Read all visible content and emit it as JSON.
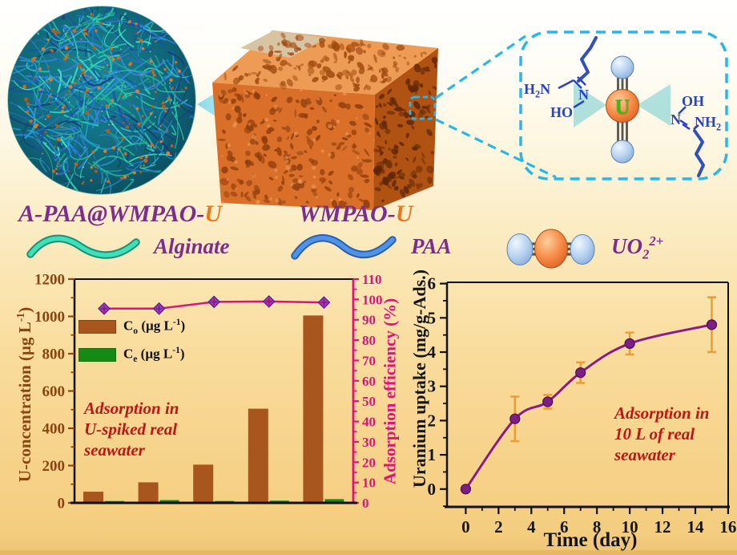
{
  "header": {
    "sphere_title": {
      "main": "A-PAA@WMPAO-",
      "suffix": "U"
    },
    "cube_title": {
      "main": "WMPAO-",
      "suffix": "U"
    }
  },
  "legend_row": {
    "alginate": "Alginate",
    "paa": "PAA",
    "uo2_full": "UO₂²⁺"
  },
  "molecule_inset": {
    "n_left": "N",
    "ho": "HO",
    "oh": "OH",
    "n_right": "N",
    "uranium": "U"
  },
  "display_parts": {
    "h2n": {
      "pre": "H",
      "sub": "2",
      "post": "N"
    },
    "nh2": {
      "pre": "NH",
      "sub": "2"
    },
    "uo2_legend": {
      "main": "UO",
      "sub": "2",
      "sup": "2+"
    },
    "co_legend": {
      "sym": "C",
      "sub": "o",
      "unit_pre": " (µg L",
      "unit_sup": "-1",
      "unit_post": ")"
    },
    "ce_legend": {
      "sym": "C",
      "sub": "e",
      "unit_pre": " (µg L",
      "unit_sup": "-1",
      "unit_post": ")"
    },
    "left_ylabel": {
      "pre": "U-concentration (µg L",
      "sup": "-1",
      "post": ")"
    }
  },
  "colors": {
    "purple_title": "#7b2d90",
    "orange_accent": "#e8781e",
    "annotation_red": "#bf1515",
    "axis_brown": "#8a4513",
    "efficiency_pink": "#e0137c",
    "bar_co": "#a8551e",
    "bar_ce": "#168a16",
    "uptake_purple": "#7d1d86",
    "error_orange": "#f49a2c",
    "cyan_dash": "#29b7ea",
    "alginate_teal": "#3fe0b5",
    "paa_blue": "#4f93e8",
    "u_green": "#2ebd12"
  },
  "chart_data": [
    {
      "type": "bar",
      "categories": [
        "",
        "",
        "",
        "",
        ""
      ],
      "series": [
        {
          "name": "Cₒ (µg L⁻¹)",
          "type": "bar",
          "color": "#a8551e",
          "values": [
            60,
            110,
            205,
            505,
            1005
          ]
        },
        {
          "name": "Cₑ (µg L⁻¹)",
          "type": "bar",
          "color": "#168a16",
          "values": [
            10,
            15,
            10,
            12,
            20
          ]
        },
        {
          "name": "Adsorption efficiency (%)",
          "type": "line",
          "color": "#e0137c",
          "y_axis": "right",
          "values": [
            95.5,
            95.5,
            98.8,
            99,
            98.5
          ]
        }
      ],
      "ylabel": "U-concentration (µg L⁻¹)",
      "ylim": [
        0,
        1200
      ],
      "yticks": [
        0,
        200,
        400,
        600,
        800,
        1000,
        1200
      ],
      "y2label": "Adsorption efficiency (%)",
      "y2lim": [
        0,
        110
      ],
      "y2ticks": [
        0,
        10,
        20,
        30,
        40,
        50,
        60,
        70,
        80,
        90,
        100,
        110
      ],
      "legend_position": "upper-left-inside",
      "grid": false,
      "annotation_lines": [
        "Adsorption in",
        "U-spiked real",
        "seawater"
      ]
    },
    {
      "type": "scatter",
      "x": [
        0,
        3,
        5,
        7,
        10,
        15
      ],
      "y": [
        0,
        2.05,
        2.55,
        3.4,
        4.25,
        4.8
      ],
      "yerr": [
        0,
        0.65,
        0.2,
        0.3,
        0.32,
        0.8
      ],
      "fit_line": true,
      "xlabel": "Time (day)",
      "ylabel": "Uranium uptake (mg/g-Ads.)",
      "xlim": [
        -1.2,
        16
      ],
      "ylim": [
        -0.5,
        6
      ],
      "xticks": [
        0,
        2,
        4,
        6,
        8,
        10,
        12,
        14,
        16
      ],
      "yticks": [
        0,
        1,
        2,
        3,
        4,
        5,
        6
      ],
      "grid": false,
      "annotation_lines": [
        "Adsorption in",
        "10 L of real",
        "seawater"
      ]
    }
  ]
}
